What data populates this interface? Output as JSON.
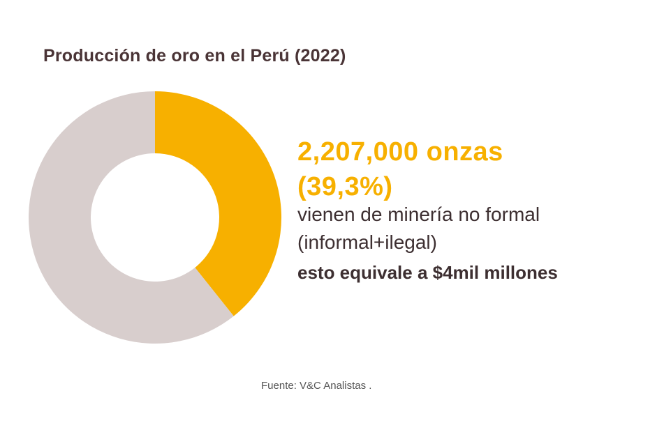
{
  "title": "Producción de oro en el Perú (2022)",
  "highlight": {
    "amount": "2,207,000 onzas",
    "percent": "(39,3%)",
    "description_line1": "vienen de minería no formal",
    "description_line2": "(informal+ilegal)",
    "equivalence": "esto equivale a $4mil millones"
  },
  "source": "Fuente: V&C Analistas .",
  "colors": {
    "highlight": "#f7b000",
    "rest": "#d8cecd",
    "title": "#4a3436",
    "text": "#3d2f31"
  },
  "chart_data": {
    "type": "pie",
    "donut": true,
    "start": "12 o'clock, clockwise",
    "slices": [
      {
        "value": 39.3,
        "color": "#f7b000"
      },
      {
        "value": 60.7,
        "color": "#d8cecd"
      }
    ]
  }
}
